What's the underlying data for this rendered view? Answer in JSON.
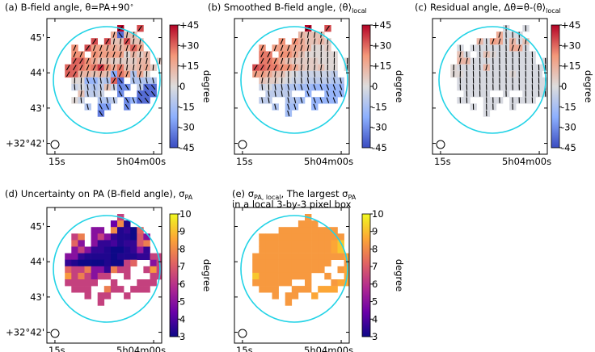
{
  "figure_title": "Magnetic field angle maps",
  "chart_data": [
    {
      "type": "heatmap",
      "id": "a",
      "title_main": "(a) B-field angle, θ=PA+90",
      "title_deg": "∘",
      "title_sub": "",
      "title2": "",
      "colorbar": {
        "label": "degree",
        "range": [
          -45,
          45
        ],
        "ticks": [
          "+45",
          "+30",
          "+15",
          "0",
          "-15",
          "-30",
          "-45"
        ],
        "cmap": [
          "#3a4cc0",
          "#8db0fe",
          "#dddddd",
          "#f4987a",
          "#b40426"
        ]
      },
      "xticks": [
        "15s",
        "5h04m00s"
      ],
      "yticks": [
        "45'",
        "44'",
        "43'",
        "+32°42'"
      ],
      "vectors": true,
      "beam": true,
      "aperture": true,
      "grid_values": [
        "..........6..w...",
        ".........rcpp....",
        "......w.wppwpp...",
        "...t.wssrrqrvs.....",
        "...tt.tssssnqoq....",
        "...vvtrppooooqq.o..",
        "..vvutuxtruppqro.o.",
        "..vvqqpqpgusjrn..p.",
        "...nnhhkjvc.jjjj...",
        "...lmkjkplee.kcc.c.",
        "....pkkl..e..ccc...",
        "...nl..jjk.ehcc....",
        ".....j.ff..e.......",
        ".......d..........."
      ]
    },
    {
      "type": "heatmap",
      "id": "b",
      "title_main": "(b) Smoothed B-field angle, ⟨θ⟩",
      "title_deg": "",
      "title_sub": "local",
      "title2": "",
      "colorbar": {
        "label": "degree",
        "range": [
          -45,
          45
        ],
        "ticks": [
          "+45",
          "+30",
          "+15",
          "0",
          "-15",
          "-30",
          "-45"
        ],
        "cmap": [
          "#3a4cc0",
          "#8db0fe",
          "#dddddd",
          "#f4987a",
          "#b40426"
        ]
      },
      "xticks": [
        "15s",
        "5h04m00s"
      ],
      "yticks": [],
      "vectors": true,
      "beam": true,
      "aperture": true,
      "grid_values": [
        "..........6..w...",
        ".........qppp....",
        "......t.trppqo...",
        "...t.sssrrqnno.....",
        "...uu.ttrpnnnnn....",
        "...uutrpoooonnn.n..",
        "..wvuuttrpoopnn.n.",
        "..ssrppnmlllllk..k.",
        "...poonmllkkkkjj...",
        "...lmkkjjiihhhhh.h.",
        "....kkkk..h..hhh...",
        "...kk..jji.hhhh....",
        ".....j.ii..h.......",
        ".......i..........."
      ]
    },
    {
      "type": "heatmap",
      "id": "c",
      "title_main": "(c) Residual angle, Δθ=θ-⟨θ⟩",
      "title_deg": "",
      "title_sub": "local",
      "title2": "",
      "colorbar": {
        "label": "degree",
        "range": [
          -45,
          45
        ],
        "ticks": [
          "+45",
          "+30",
          "+15",
          "0",
          "-15",
          "-30",
          "-45"
        ],
        "cmap": [
          "#3a4cc0",
          "#8db0fe",
          "#dddddd",
          "#f4987a",
          "#b40426"
        ]
      },
      "xticks": [
        "15s",
        "5h04m00s"
      ],
      "yticks": [],
      "vectors": true,
      "beam": true,
      "aperture": true,
      "grid_values": [
        "..........m..m...",
        ".........rmmm....",
        "......qmsrmqmp...",
        "...m.mmmmmmrrm.....",
        "...pm.mpnmmmmmm....",
        "...qqmmmmmmmmmm.m..",
        "..nmmmmqmmmmmmmmm.m",
        "..nnmmmmmmmnmmmm.m.",
        "...mmmmmmmmmmmmmm..",
        "...mmmmmmmmmmmmmm.m",
        "....mmmm..m..mmmm..",
        "...mm..mmm.mmmm....",
        ".....m.mm..m.......",
        ".......m..........."
      ]
    },
    {
      "type": "heatmap",
      "id": "d",
      "title_main": "(d) Uncertainty on PA (B-field angle), σ",
      "title_deg": "",
      "title_sub": "PA",
      "title2": "",
      "colorbar": {
        "label": "degree",
        "range": [
          3,
          10
        ],
        "ticks": [
          "10",
          "9",
          "8",
          "7",
          "6",
          "5",
          "4",
          "3"
        ],
        "cmap": [
          "#0d0887",
          "#6a00a8",
          "#b12a90",
          "#e16462",
          "#fca636",
          "#f0f921"
        ]
      },
      "xticks": [
        "15s",
        "5h04m00s"
      ],
      "yticks": [
        "45'",
        "44'",
        "43'",
        "+32°42'"
      ],
      "vectors": false,
      "beam": true,
      "aperture": true,
      "grid_values": [
        "..........m......",
        ".........fsb.....",
        "......hh.sbcap...",
        "...mr.hmhcbbaoh....",
        "...ph.hccdbccor....",
        "...hmhccbaabcic....",
        "..hhcbbbbabbbccmm..",
        "..cbaaaabaamp..hmm.",
        "..pmmrhhcrmm..mtm..",
        "..tmrmhmm..m...mmr.",
        "..mmmmm..m...mmm...",
        "...mmm..rmm.mmm....",
        ".....m.mm..m.......",
        ".......m..........."
      ]
    },
    {
      "type": "heatmap",
      "id": "e",
      "title_main": "(e) σ",
      "title_deg": "",
      "title_sub": "PA, local",
      "title_rest": ", The largest σ",
      "title_sub2": "PA",
      "title2": "in a local 3-by-3 pixel box",
      "colorbar": {
        "label": "degree",
        "range": [
          3,
          10
        ],
        "ticks": [
          "10",
          "9",
          "8",
          "7",
          "6",
          "5",
          "4",
          "3"
        ],
        "cmap": [
          "#0d0887",
          "#6a00a8",
          "#b12a90",
          "#e16462",
          "#fca636",
          "#f0f921"
        ]
      },
      "xticks": [
        "15s",
        "5h04m00s"
      ],
      "yticks": [],
      "vectors": false,
      "beam": true,
      "aperture": true,
      "grid_values": [
        "..........t......",
        ".........ttt.....",
        "......ttttttttt..",
        "...ttttttttttttt...",
        "...tttttttttttuw...",
        "...tttttttttttuw...",
        "..ttttttttttttttuw.",
        "..tttttttttttt..tuw",
        "..ttttttttttt..tuuw",
        "..wtttttttt..t..uuw",
        "..tttttt..t...tuu..",
        "...ttt..ttt.uuu....",
        ".....t.tt..u.......",
        ".......t..........."
      ]
    }
  ]
}
